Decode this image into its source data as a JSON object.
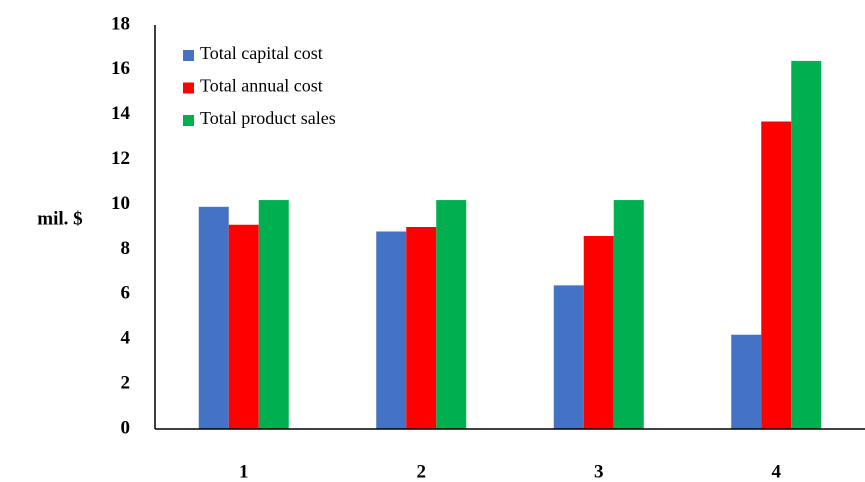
{
  "chart_data": {
    "type": "bar",
    "y_label": "mil. $",
    "categories": [
      "1",
      "2",
      "3",
      "4"
    ],
    "series": [
      {
        "name": "Total capital cost",
        "color": "#4472c4",
        "values": [
          9.9,
          8.8,
          6.4,
          4.2
        ]
      },
      {
        "name": "Total annual cost",
        "color": "#ff0000",
        "values": [
          9.1,
          9.0,
          8.6,
          13.7
        ]
      },
      {
        "name": "Total product sales",
        "color": "#00b050",
        "values": [
          10.2,
          10.2,
          10.2,
          16.4
        ]
      }
    ],
    "ylim": [
      0,
      18
    ],
    "yticks": [
      0,
      2,
      4,
      6,
      8,
      10,
      12,
      14,
      16,
      18
    ],
    "grid": false,
    "legend": "upper left"
  }
}
